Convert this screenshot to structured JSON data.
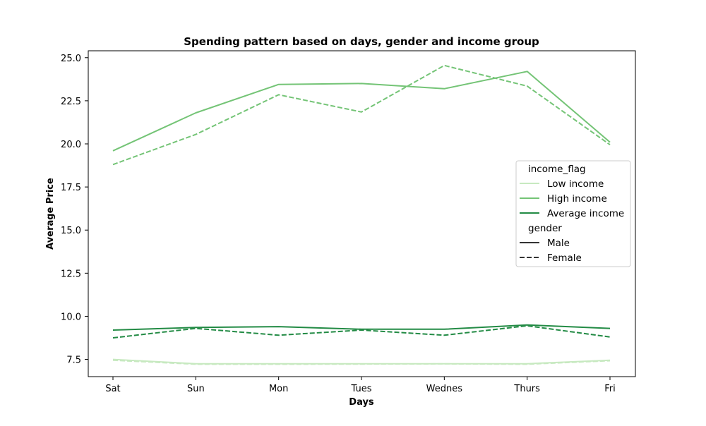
{
  "chart_data": {
    "type": "line",
    "title": "Spending pattern based on days, gender and income group",
    "xlabel": "Days",
    "ylabel": "Average Price",
    "categories": [
      "Sat",
      "Sun",
      "Mon",
      "Tues",
      "Wednes",
      "Thurs",
      "Fri"
    ],
    "ylim": [
      6.5,
      25.4
    ],
    "yticks": [
      7.5,
      10.0,
      12.5,
      15.0,
      17.5,
      20.0,
      22.5,
      25.0
    ],
    "ytick_labels": [
      "7.5",
      "10.0",
      "12.5",
      "15.0",
      "17.5",
      "20.0",
      "22.5",
      "25.0"
    ],
    "grid": false,
    "legend": {
      "placement": "center-right",
      "income_title": "income_flag",
      "gender_title": "gender",
      "income_entries": [
        {
          "label": "Low income",
          "color": "#c7e9c0"
        },
        {
          "label": "High income",
          "color": "#74c476"
        },
        {
          "label": "Average income",
          "color": "#238b45"
        }
      ],
      "gender_entries": [
        {
          "label": "Male",
          "style": "solid",
          "color": "#333333"
        },
        {
          "label": "Female",
          "style": "dashed",
          "color": "#333333"
        }
      ]
    },
    "series": [
      {
        "income": "High income",
        "gender": "Male",
        "color": "#74c476",
        "style": "solid",
        "values": [
          19.6,
          21.8,
          23.45,
          23.5,
          23.2,
          24.2,
          20.1
        ]
      },
      {
        "income": "High income",
        "gender": "Female",
        "color": "#74c476",
        "style": "dashed",
        "values": [
          18.8,
          20.55,
          22.85,
          21.85,
          24.55,
          23.35,
          19.95
        ]
      },
      {
        "income": "Average income",
        "gender": "Male",
        "color": "#238b45",
        "style": "solid",
        "values": [
          9.2,
          9.35,
          9.4,
          9.25,
          9.25,
          9.5,
          9.3
        ]
      },
      {
        "income": "Average income",
        "gender": "Female",
        "color": "#238b45",
        "style": "dashed",
        "values": [
          8.75,
          9.3,
          8.9,
          9.2,
          8.9,
          9.45,
          8.8
        ]
      },
      {
        "income": "Low income",
        "gender": "Male",
        "color": "#c7e9c0",
        "style": "solid",
        "values": [
          7.5,
          7.25,
          7.25,
          7.25,
          7.25,
          7.25,
          7.45
        ]
      },
      {
        "income": "Low income",
        "gender": "Female",
        "color": "#c7e9c0",
        "style": "dashed",
        "values": [
          7.45,
          7.22,
          7.22,
          7.23,
          7.24,
          7.22,
          7.42
        ]
      }
    ]
  }
}
